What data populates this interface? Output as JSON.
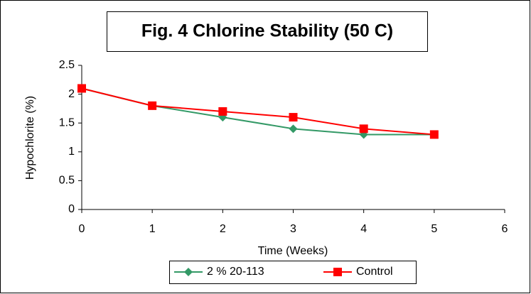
{
  "chart_data": {
    "type": "line",
    "title": "Fig. 4 Chlorine Stability (50 C)",
    "x_label": "Time (Weeks)",
    "y_label": "Hypochlorite (%)",
    "x": [
      0,
      1,
      2,
      3,
      4,
      5
    ],
    "series": [
      {
        "name": "2 % 20-113",
        "color": "#339966",
        "marker": "diamond",
        "values": [
          2.1,
          1.8,
          1.6,
          1.4,
          1.3,
          1.3
        ]
      },
      {
        "name": "Control",
        "color": "#ff0000",
        "marker": "square",
        "values": [
          2.1,
          1.8,
          1.7,
          1.6,
          1.4,
          1.3
        ]
      }
    ],
    "xlim": [
      0,
      6
    ],
    "xticks": [
      0,
      1,
      2,
      3,
      4,
      5,
      6
    ],
    "ylim": [
      0,
      2.5
    ],
    "yticks": [
      0,
      0.5,
      1,
      1.5,
      2,
      2.5
    ],
    "grid": false,
    "legend": "bottom"
  }
}
